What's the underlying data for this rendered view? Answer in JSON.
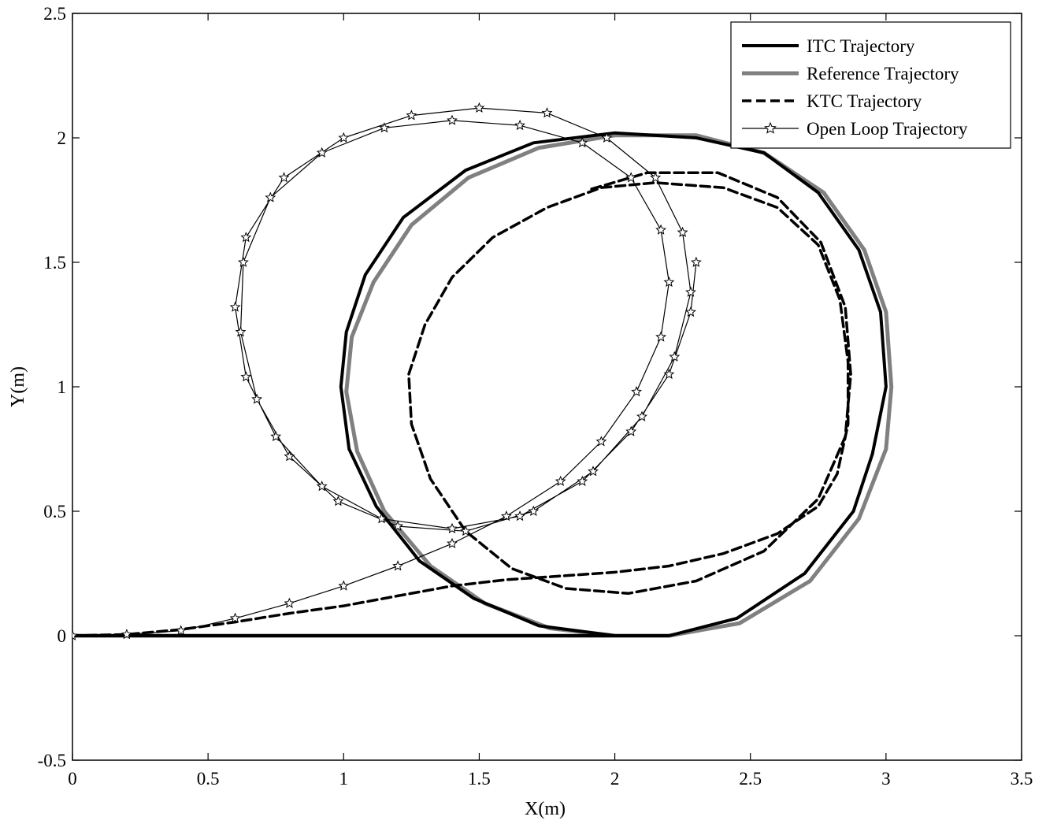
{
  "chart_data": {
    "type": "line",
    "title": "",
    "xlabel": "X(m)",
    "ylabel": "Y(m)",
    "xlim": [
      0,
      3.5
    ],
    "ylim": [
      -0.5,
      2.5
    ],
    "xticks": [
      0,
      0.5,
      1,
      1.5,
      2,
      2.5,
      3,
      3.5
    ],
    "xtick_labels": [
      "0",
      "0.5",
      "1",
      "1.5",
      "2",
      "2.5",
      "3",
      "3.5"
    ],
    "yticks": [
      -0.5,
      0,
      0.5,
      1,
      1.5,
      2,
      2.5
    ],
    "ytick_labels": [
      "-0.5",
      "0",
      "0.5",
      "1",
      "1.5",
      "2",
      "2.5"
    ],
    "grid": false,
    "legend_position": "top-right",
    "series": [
      {
        "name": "ITC Trajectory",
        "color": "#000000",
        "style": "solid-thick",
        "points": [
          [
            0,
            0
          ],
          [
            0.5,
            0
          ],
          [
            1,
            0
          ],
          [
            1.5,
            0
          ],
          [
            1.8,
            0
          ],
          [
            2.0,
            0.0
          ],
          [
            2.2,
            0.0
          ],
          [
            2.45,
            0.07
          ],
          [
            2.7,
            0.25
          ],
          [
            2.88,
            0.5
          ],
          [
            2.95,
            0.73
          ],
          [
            3.0,
            1.0
          ],
          [
            2.98,
            1.3
          ],
          [
            2.9,
            1.55
          ],
          [
            2.75,
            1.78
          ],
          [
            2.55,
            1.94
          ],
          [
            2.3,
            2.0
          ],
          [
            2.0,
            2.02
          ],
          [
            1.7,
            1.98
          ],
          [
            1.45,
            1.87
          ],
          [
            1.22,
            1.68
          ],
          [
            1.08,
            1.45
          ],
          [
            1.01,
            1.22
          ],
          [
            0.99,
            1.0
          ],
          [
            1.02,
            0.75
          ],
          [
            1.12,
            0.52
          ],
          [
            1.28,
            0.3
          ],
          [
            1.48,
            0.15
          ],
          [
            1.72,
            0.04
          ],
          [
            2.0,
            0.0
          ],
          [
            2.2,
            0.0
          ]
        ]
      },
      {
        "name": "Reference Trajectory",
        "color": "#808080",
        "style": "solid-thick",
        "points": [
          [
            0,
            0
          ],
          [
            0.5,
            0
          ],
          [
            1,
            0
          ],
          [
            1.5,
            0
          ],
          [
            1.8,
            0
          ],
          [
            2.0,
            0
          ],
          [
            2.2,
            0
          ],
          [
            2.46,
            0.05
          ],
          [
            2.72,
            0.22
          ],
          [
            2.9,
            0.47
          ],
          [
            3.0,
            0.75
          ],
          [
            3.02,
            1.0
          ],
          [
            3.0,
            1.3
          ],
          [
            2.92,
            1.55
          ],
          [
            2.77,
            1.78
          ],
          [
            2.55,
            1.94
          ],
          [
            2.3,
            2.01
          ],
          [
            2.0,
            2.01
          ],
          [
            1.72,
            1.96
          ],
          [
            1.46,
            1.84
          ],
          [
            1.25,
            1.65
          ],
          [
            1.11,
            1.42
          ],
          [
            1.03,
            1.2
          ],
          [
            1.01,
            0.98
          ],
          [
            1.05,
            0.74
          ],
          [
            1.15,
            0.5
          ],
          [
            1.32,
            0.28
          ],
          [
            1.52,
            0.13
          ],
          [
            1.76,
            0.03
          ],
          [
            2.0,
            0
          ]
        ]
      },
      {
        "name": "KTC Trajectory",
        "color": "#000000",
        "style": "dashed",
        "points": [
          [
            0,
            0
          ],
          [
            0.2,
            0.005
          ],
          [
            0.4,
            0.025
          ],
          [
            0.6,
            0.055
          ],
          [
            0.8,
            0.09
          ],
          [
            1.0,
            0.12
          ],
          [
            1.2,
            0.16
          ],
          [
            1.4,
            0.2
          ],
          [
            1.6,
            0.225
          ],
          [
            1.8,
            0.24
          ],
          [
            2.0,
            0.255
          ],
          [
            2.2,
            0.28
          ],
          [
            2.4,
            0.33
          ],
          [
            2.6,
            0.41
          ],
          [
            2.75,
            0.52
          ],
          [
            2.82,
            0.65
          ],
          [
            2.86,
            0.85
          ],
          [
            2.86,
            1.1
          ],
          [
            2.83,
            1.35
          ],
          [
            2.75,
            1.57
          ],
          [
            2.6,
            1.72
          ],
          [
            2.4,
            1.8
          ],
          [
            2.15,
            1.82
          ],
          [
            1.95,
            1.8
          ],
          [
            1.75,
            1.72
          ],
          [
            1.55,
            1.6
          ],
          [
            1.4,
            1.44
          ],
          [
            1.3,
            1.25
          ],
          [
            1.24,
            1.05
          ],
          [
            1.25,
            0.85
          ],
          [
            1.32,
            0.63
          ],
          [
            1.45,
            0.42
          ],
          [
            1.62,
            0.27
          ],
          [
            1.82,
            0.19
          ],
          [
            2.05,
            0.17
          ],
          [
            2.3,
            0.22
          ],
          [
            2.55,
            0.34
          ],
          [
            2.75,
            0.55
          ],
          [
            2.85,
            0.8
          ],
          [
            2.87,
            1.05
          ],
          [
            2.85,
            1.32
          ],
          [
            2.76,
            1.58
          ],
          [
            2.6,
            1.76
          ],
          [
            2.38,
            1.86
          ],
          [
            2.12,
            1.86
          ],
          [
            1.9,
            1.79
          ]
        ]
      },
      {
        "name": "Open Loop Trajectory",
        "color": "#000000",
        "style": "solid-thin-star-markers",
        "points": [
          [
            0,
            0
          ],
          [
            0.2,
            0.005
          ],
          [
            0.4,
            0.02
          ],
          [
            0.6,
            0.07
          ],
          [
            0.8,
            0.13
          ],
          [
            1.0,
            0.2
          ],
          [
            1.2,
            0.28
          ],
          [
            1.4,
            0.37
          ],
          [
            1.6,
            0.48
          ],
          [
            1.8,
            0.62
          ],
          [
            1.95,
            0.78
          ],
          [
            2.08,
            0.98
          ],
          [
            2.17,
            1.2
          ],
          [
            2.2,
            1.42
          ],
          [
            2.17,
            1.63
          ],
          [
            2.06,
            1.84
          ],
          [
            1.88,
            1.98
          ],
          [
            1.65,
            2.05
          ],
          [
            1.4,
            2.07
          ],
          [
            1.15,
            2.04
          ],
          [
            0.92,
            1.94
          ],
          [
            0.73,
            1.76
          ],
          [
            0.63,
            1.5
          ],
          [
            0.62,
            1.22
          ],
          [
            0.68,
            0.95
          ],
          [
            0.8,
            0.72
          ],
          [
            0.98,
            0.54
          ],
          [
            1.2,
            0.44
          ],
          [
            1.45,
            0.42
          ],
          [
            1.7,
            0.5
          ],
          [
            1.92,
            0.66
          ],
          [
            2.1,
            0.88
          ],
          [
            2.22,
            1.12
          ],
          [
            2.28,
            1.38
          ],
          [
            2.25,
            1.62
          ],
          [
            2.15,
            1.84
          ],
          [
            1.97,
            2.0
          ],
          [
            1.75,
            2.1
          ],
          [
            1.5,
            2.12
          ],
          [
            1.25,
            2.09
          ],
          [
            1.0,
            2.0
          ],
          [
            0.78,
            1.84
          ],
          [
            0.64,
            1.6
          ],
          [
            0.6,
            1.32
          ],
          [
            0.64,
            1.04
          ],
          [
            0.75,
            0.8
          ],
          [
            0.92,
            0.6
          ],
          [
            1.14,
            0.47
          ],
          [
            1.4,
            0.43
          ],
          [
            1.65,
            0.48
          ],
          [
            1.88,
            0.62
          ],
          [
            2.06,
            0.82
          ],
          [
            2.2,
            1.05
          ],
          [
            2.28,
            1.3
          ],
          [
            2.3,
            1.5
          ]
        ]
      }
    ]
  }
}
